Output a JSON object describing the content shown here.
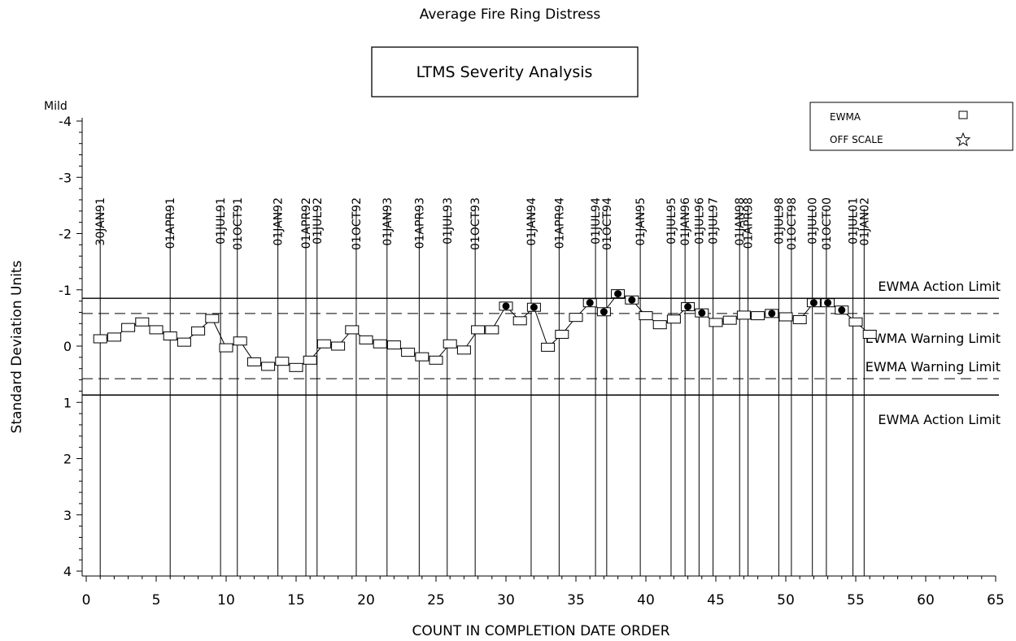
{
  "chart_data": {
    "type": "line",
    "title": "Average Fire Ring Distress",
    "subtitle": "LTMS Severity Analysis",
    "xlabel": "COUNT IN COMPLETION DATE ORDER",
    "ylabel": "Standard Deviation Units",
    "xlim": [
      0,
      65
    ],
    "ylim": [
      4,
      -4
    ],
    "y_inverted": true,
    "x_ticks": [
      "0",
      "5",
      "10",
      "15",
      "20",
      "25",
      "30",
      "35",
      "40",
      "45",
      "50",
      "55",
      "60",
      "65"
    ],
    "y_ticks": [
      "-4",
      "-3",
      "-2",
      "-1",
      "0",
      "1",
      "2",
      "3",
      "4"
    ],
    "y_top_annotation": "Mild",
    "legend": {
      "position": "top-right",
      "entries": [
        {
          "label": "EWMA",
          "marker": "square"
        },
        {
          "label": "OFF SCALE",
          "marker": "star"
        }
      ]
    },
    "limits": [
      {
        "label": "EWMA Action Limit",
        "value": -0.85,
        "style": "solid"
      },
      {
        "label": "EWMA Warning Limit",
        "value": -0.58,
        "style": "dashed"
      },
      {
        "label": "EWMA Warning Limit",
        "value": 0.58,
        "style": "dashed"
      },
      {
        "label": "EWMA Action Limit",
        "value": 0.87,
        "style": "solid"
      }
    ],
    "date_markers": [
      {
        "label": "30JAN91",
        "x": 1
      },
      {
        "label": "01APR91",
        "x": 6
      },
      {
        "label": "01JUL91",
        "x": 9.6
      },
      {
        "label": "01OCT91",
        "x": 10.8
      },
      {
        "label": "01JAN92",
        "x": 13.7
      },
      {
        "label": "01APR92",
        "x": 15.7
      },
      {
        "label": "01JUL92",
        "x": 16.5
      },
      {
        "label": "01OCT92",
        "x": 19.3
      },
      {
        "label": "01JAN93",
        "x": 21.5
      },
      {
        "label": "01APR93",
        "x": 23.8
      },
      {
        "label": "01JUL93",
        "x": 25.8
      },
      {
        "label": "01OCT93",
        "x": 27.8
      },
      {
        "label": "01JAN94",
        "x": 31.8
      },
      {
        "label": "01APR94",
        "x": 33.8
      },
      {
        "label": "01JUL94",
        "x": 36.4
      },
      {
        "label": "01OCT94",
        "x": 37.2
      },
      {
        "label": "01JAN95",
        "x": 39.6
      },
      {
        "label": "01JUL95",
        "x": 41.8
      },
      {
        "label": "01JAN96",
        "x": 42.8
      },
      {
        "label": "01JUL96",
        "x": 43.8
      },
      {
        "label": "01JUL97",
        "x": 44.8
      },
      {
        "label": "01JAN98",
        "x": 46.7
      },
      {
        "label": "01APR98",
        "x": 47.3
      },
      {
        "label": "01JUL98",
        "x": 49.5
      },
      {
        "label": "01OCT98",
        "x": 50.4
      },
      {
        "label": "01JUL00",
        "x": 51.9
      },
      {
        "label": "01OCT00",
        "x": 52.9
      },
      {
        "label": "01JUL01",
        "x": 54.8
      },
      {
        "label": "01JAN02",
        "x": 55.6
      }
    ],
    "series": [
      {
        "marker": "square",
        "x": [
          1,
          2,
          3,
          4,
          5,
          6,
          7,
          8,
          9,
          10,
          11,
          12,
          13,
          14,
          15,
          16,
          17,
          18,
          19,
          20,
          21,
          22,
          23,
          24,
          25,
          26,
          27,
          28,
          29,
          30,
          31,
          32,
          33,
          34,
          35,
          36,
          37,
          38,
          39,
          40,
          41,
          42,
          43,
          44,
          45,
          46,
          47,
          48,
          49,
          50,
          51,
          52,
          53,
          54,
          55,
          56
        ],
        "y": [
          -0.13,
          -0.16,
          -0.33,
          -0.43,
          -0.29,
          -0.18,
          -0.07,
          -0.27,
          -0.49,
          0.03,
          -0.09,
          0.28,
          0.36,
          0.27,
          0.38,
          0.25,
          -0.04,
          0.0,
          -0.29,
          -0.11,
          -0.04,
          -0.02,
          0.11,
          0.19,
          0.25,
          -0.04,
          0.07,
          -0.29,
          -0.29,
          -0.71,
          -0.45,
          -0.69,
          0.02,
          -0.21,
          -0.51,
          -0.77,
          -0.61,
          -0.93,
          -0.82,
          -0.54,
          -0.38,
          -0.48,
          -0.7,
          -0.59,
          -0.42,
          -0.46,
          -0.55,
          -0.54,
          -0.58,
          -0.52,
          -0.47,
          -0.77,
          -0.77,
          -0.64,
          -0.43,
          -0.21
        ],
        "above_warning": [
          30,
          32,
          36,
          37,
          38,
          39,
          43,
          44,
          49,
          52,
          53,
          54
        ]
      }
    ]
  }
}
